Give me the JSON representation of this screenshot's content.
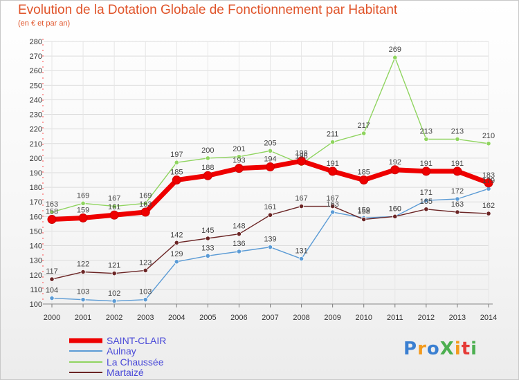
{
  "header": {
    "title": "Evolution de la Dotation Globale de Fonctionnement par Habitant",
    "subtitle": "(en € et par an)"
  },
  "logo": {
    "text": "ProXiti",
    "colors": [
      "#3a7fd1",
      "#f39a1c",
      "#3a7fd1",
      "#4caf50",
      "#f39a1c",
      "#e53935",
      "#4caf50"
    ]
  },
  "chart_data": {
    "type": "line",
    "title": "Evolution de la Dotation Globale de Fonctionnement par Habitant",
    "subtitle": "(en € et par an)",
    "xlabel": "",
    "ylabel": "",
    "x": [
      "2000",
      "2001",
      "2002",
      "2003",
      "2004",
      "2005",
      "2006",
      "2007",
      "2008",
      "2009",
      "2010",
      "2011",
      "2012",
      "2013",
      "2014"
    ],
    "yticks": [
      100,
      110,
      120,
      130,
      140,
      150,
      160,
      170,
      180,
      190,
      200,
      210,
      220,
      230,
      240,
      250,
      260,
      270,
      280
    ],
    "ylim": [
      100,
      280
    ],
    "grid": true,
    "legend_position": "bottom-left",
    "series": [
      {
        "name": "SAINT-CLAIR",
        "color": "#ee0000",
        "values": [
          158,
          159,
          161,
          163,
          185,
          188,
          193,
          194,
          198,
          191,
          185,
          192,
          191,
          191,
          183
        ],
        "labels": [
          "158",
          "159",
          "161",
          "163",
          "185",
          "188",
          "193",
          "194",
          "198",
          "191",
          "185",
          "192",
          "191",
          "191",
          "183"
        ]
      },
      {
        "name": "Aulnay",
        "color": "#5b9bd5",
        "values": [
          104,
          103,
          102,
          103,
          129,
          133,
          136,
          139,
          131,
          163,
          159,
          160,
          171,
          172,
          179
        ],
        "labels": [
          "104",
          "103",
          "102",
          "103",
          "129",
          "133",
          "136",
          "139",
          "131",
          "163",
          "159",
          "160",
          "171",
          "172",
          "179"
        ]
      },
      {
        "name": "La Chaussée",
        "color": "#8fd45f",
        "values": [
          163,
          169,
          167,
          169,
          197,
          200,
          201,
          205,
          196,
          211,
          217,
          269,
          213,
          213,
          210
        ],
        "labels": [
          "163",
          "169",
          "167",
          "169",
          "197",
          "200",
          "201",
          "205",
          "196",
          "211",
          "217",
          "269",
          "213",
          "213",
          "210"
        ]
      },
      {
        "name": "Martaizé",
        "color": "#6b2525",
        "values": [
          117,
          122,
          121,
          123,
          142,
          145,
          148,
          161,
          167,
          167,
          158,
          160,
          165,
          163,
          162
        ],
        "labels": [
          "117",
          "122",
          "121",
          "123",
          "142",
          "145",
          "148",
          "161",
          "167",
          "167",
          "158",
          "160",
          "165",
          "163",
          "162"
        ]
      }
    ]
  }
}
